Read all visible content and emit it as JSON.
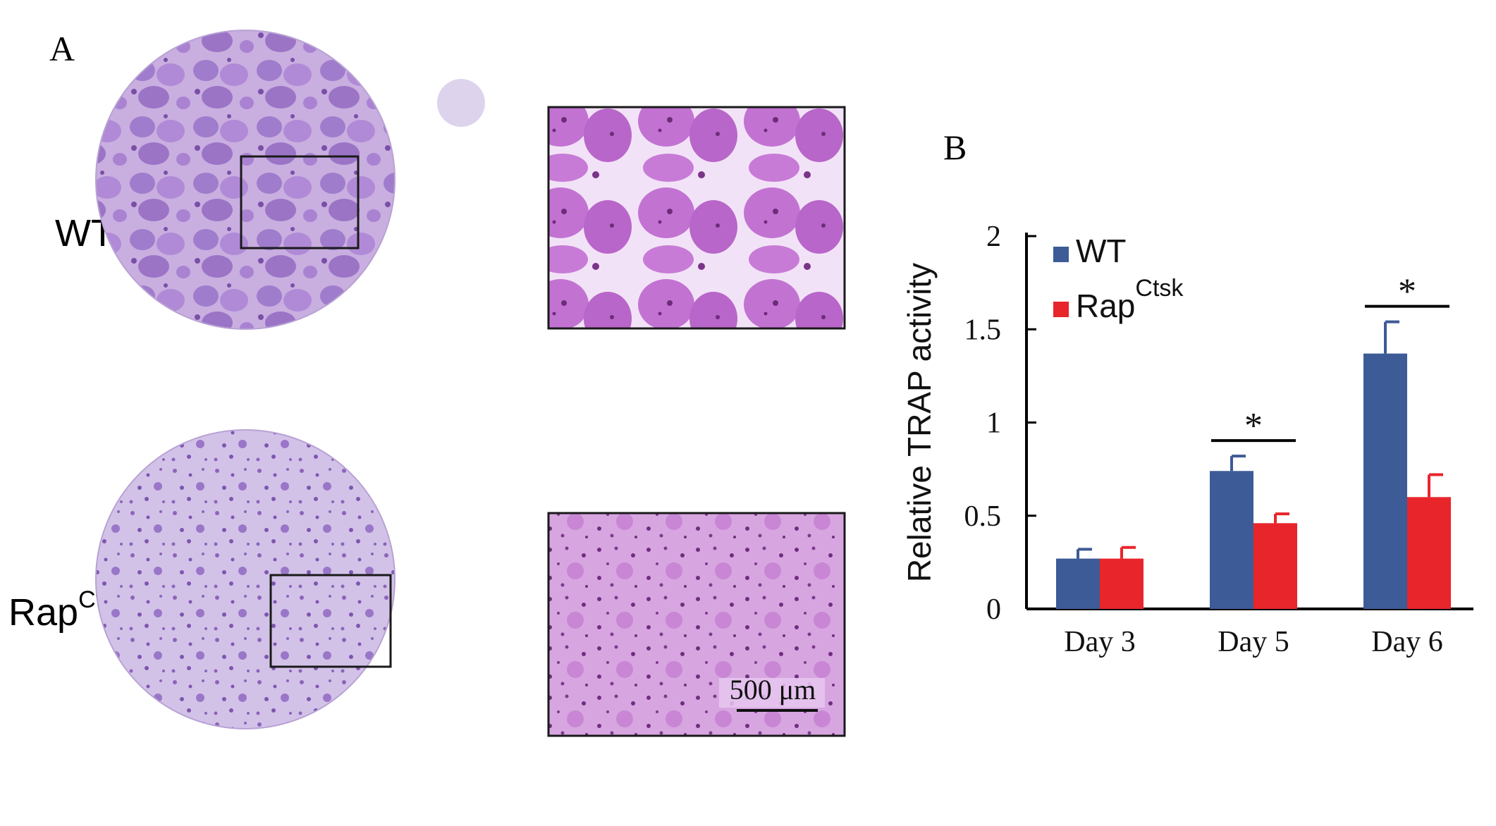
{
  "panel_a": {
    "label": "A",
    "rows": [
      {
        "name": "WT",
        "sup": ""
      },
      {
        "name": "Rap",
        "sup": "Ctsk"
      }
    ],
    "scale_bar": "500 μm"
  },
  "panel_b": {
    "label": "B"
  },
  "chart_data": {
    "type": "bar",
    "categories": [
      "Day 3",
      "Day 5",
      "Day 6"
    ],
    "series": [
      {
        "name": "WT",
        "name_sup": "",
        "color": "#3d5b96",
        "values": [
          0.27,
          0.74,
          1.37
        ],
        "errors": [
          0.05,
          0.08,
          0.17
        ]
      },
      {
        "name": "Rap",
        "name_sup": "Ctsk",
        "color": "#e8252b",
        "values": [
          0.27,
          0.46,
          0.6
        ],
        "errors": [
          0.06,
          0.05,
          0.12
        ]
      }
    ],
    "xlabel": "",
    "ylabel": "Relative TRAP activity",
    "ylim": [
      0,
      2
    ],
    "yticks": [
      0,
      0.5,
      1,
      1.5,
      2
    ],
    "ytick_labels": [
      "0",
      "0.5",
      "1",
      "1.5",
      "2"
    ],
    "significance": [
      {
        "category": "Day 5",
        "marker": "*"
      },
      {
        "category": "Day 6",
        "marker": "*"
      }
    ],
    "legend_position": "top-left",
    "grid": false
  }
}
